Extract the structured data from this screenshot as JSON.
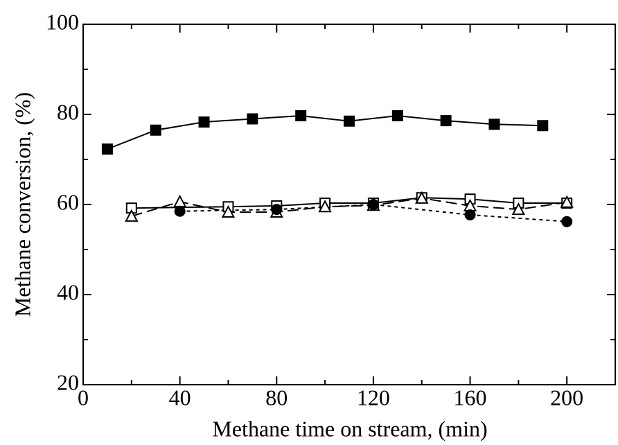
{
  "chart_data": {
    "type": "line",
    "x_label": "Methane time on stream, (min)",
    "y_label": "Methane conversion, (%)",
    "xlim": [
      0,
      220
    ],
    "ylim": [
      20,
      100
    ],
    "xticks": [
      0,
      40,
      80,
      120,
      160,
      200
    ],
    "yticks": [
      20,
      40,
      60,
      80,
      100
    ],
    "series": [
      {
        "marker": "square-filled",
        "dash": "solid",
        "color": "#000000",
        "x": [
          10,
          30,
          50,
          70,
          90,
          110,
          130,
          150,
          170,
          190
        ],
        "values": [
          72.3,
          76.5,
          78.3,
          79,
          79.7,
          78.5,
          79.7,
          78.6,
          77.8,
          77.5
        ]
      },
      {
        "marker": "square-open",
        "dash": "solid",
        "color": "#000000",
        "x": [
          20,
          60,
          80,
          100,
          120,
          140,
          160,
          180,
          200
        ],
        "values": [
          59.2,
          59.5,
          59.7,
          60.3,
          60.3,
          61.5,
          61.2,
          60.3,
          60.3
        ]
      },
      {
        "marker": "triangle-open",
        "dash": "dashed",
        "color": "#000000",
        "x": [
          20,
          40,
          60,
          80,
          100,
          120,
          140,
          160,
          180,
          200
        ],
        "values": [
          57.4,
          60.6,
          58.3,
          58.3,
          59.5,
          59.8,
          61.4,
          59.7,
          58.9,
          60.5
        ]
      },
      {
        "marker": "circle-filled",
        "dash": "dotted",
        "color": "#000000",
        "x": [
          40,
          80,
          120,
          160,
          200
        ],
        "values": [
          58.5,
          58.9,
          60,
          57.7,
          56.2
        ]
      }
    ]
  }
}
